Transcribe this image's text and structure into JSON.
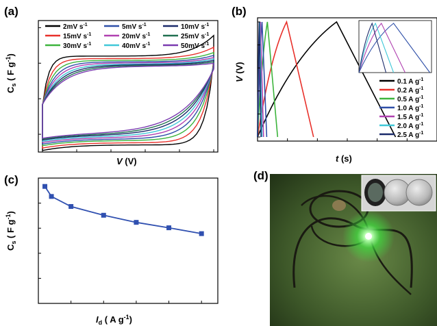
{
  "panel_labels": {
    "a": "(a)",
    "b": "(b)",
    "c": "(c)",
    "d": "(d)"
  },
  "chart_data": [
    {
      "panel": "(a)",
      "type": "line",
      "ylabel": "Cs (F g-1)",
      "xlabel": "V (V)",
      "xlim": [
        0,
        1.0
      ],
      "ylim": [
        -150,
        220
      ],
      "xticks": [
        "0.0",
        "0.2",
        "0.4",
        "0.6",
        "0.8",
        "1.0"
      ],
      "yticks": [
        "-100",
        "0",
        "100",
        "200"
      ],
      "legend": [
        "2mV s-1",
        "15mV s-1",
        "30mV s-1",
        "5mV s-1",
        "20mV s-1",
        "40mV s-1",
        "10mV s-1",
        "25mV s-1",
        "50mV s-1"
      ],
      "series": [
        {
          "name": "2mV s-1",
          "color": "#000000",
          "upper": 120,
          "lower": -130,
          "end_top": 178
        },
        {
          "name": "5mV s-1",
          "color": "#e8302a",
          "upper": 113,
          "lower": -124,
          "end_top": 145
        },
        {
          "name": "10mV s-1",
          "color": "#3cb43c",
          "upper": 108,
          "lower": -118,
          "end_top": 130
        },
        {
          "name": "15mV s-1",
          "color": "#2e4fa8",
          "upper": 104,
          "lower": -114,
          "end_top": 122
        },
        {
          "name": "20mV s-1",
          "color": "#b040b0",
          "upper": 101,
          "lower": -110,
          "end_top": 116
        },
        {
          "name": "25mV s-1",
          "color": "#40c8d8",
          "upper": 98,
          "lower": -107,
          "end_top": 112
        },
        {
          "name": "30mV s-1",
          "color": "#1a2a6a",
          "upper": 96,
          "lower": -104,
          "end_top": 108
        },
        {
          "name": "40mV s-1",
          "color": "#207050",
          "upper": 94,
          "lower": -102,
          "end_top": 104
        },
        {
          "name": "50mV s-1",
          "color": "#7a3ab0",
          "upper": 92,
          "lower": -100,
          "end_top": 100
        }
      ]
    },
    {
      "panel": "(b)",
      "type": "line",
      "ylabel": "V (V)",
      "xlabel": "t (s)",
      "xlim": [
        0,
        4200
      ],
      "ylim": [
        0,
        1.0
      ],
      "xticks": [
        "0",
        "700",
        "1400",
        "2100",
        "2800",
        "3500",
        "4200"
      ],
      "yticks": [
        "0.0",
        "0.2",
        "0.4",
        "0.6",
        "0.8",
        "1.0"
      ],
      "series": [
        {
          "name": "0.1 A g-1",
          "color": "#000000",
          "peak_t": 1850,
          "end_t": 3230
        },
        {
          "name": "0.2 A g-1",
          "color": "#e8302a",
          "peak_t": 680,
          "end_t": 1310
        },
        {
          "name": "0.5 A g-1",
          "color": "#3cb43c",
          "peak_t": 230,
          "end_t": 470
        },
        {
          "name": "1.0 A g-1",
          "color": "#2e4fa8",
          "peak_t": 105,
          "end_t": 215
        },
        {
          "name": "1.5 A g-1",
          "color": "#b040b0",
          "peak_t": 68,
          "end_t": 140
        },
        {
          "name": "2.0 A g-1",
          "color": "#40c8d8",
          "peak_t": 50,
          "end_t": 105
        },
        {
          "name": "2.5 A g-1",
          "color": "#1a2a6a",
          "peak_t": 40,
          "end_t": 82
        }
      ],
      "inset": {
        "xlim": [
          0,
          220
        ],
        "ylim": [
          0,
          1.0
        ],
        "xticks": [
          "0",
          "50",
          "100",
          "150",
          "200"
        ],
        "yticks": [
          "0.0",
          "0.2",
          "0.4",
          "0.6",
          "0.8",
          "1.0"
        ]
      }
    },
    {
      "panel": "(c)",
      "type": "line",
      "ylabel": "Cs (F g-1)",
      "xlabel": "Id (A g-1)",
      "xlim": [
        0,
        2.75
      ],
      "ylim": [
        0,
        300
      ],
      "xticks": [
        "0.0",
        "0.5",
        "1.0",
        "1.5",
        "2.0",
        "2.5"
      ],
      "yticks": [
        "0",
        "60",
        "120",
        "180",
        "240",
        "300"
      ],
      "x": [
        0.1,
        0.2,
        0.5,
        1.0,
        1.5,
        2.0,
        2.5
      ],
      "y": [
        280,
        256,
        232,
        211,
        194,
        181,
        167
      ],
      "color": "#3050b0"
    }
  ],
  "photo": {
    "description_icon": "led-photo"
  }
}
